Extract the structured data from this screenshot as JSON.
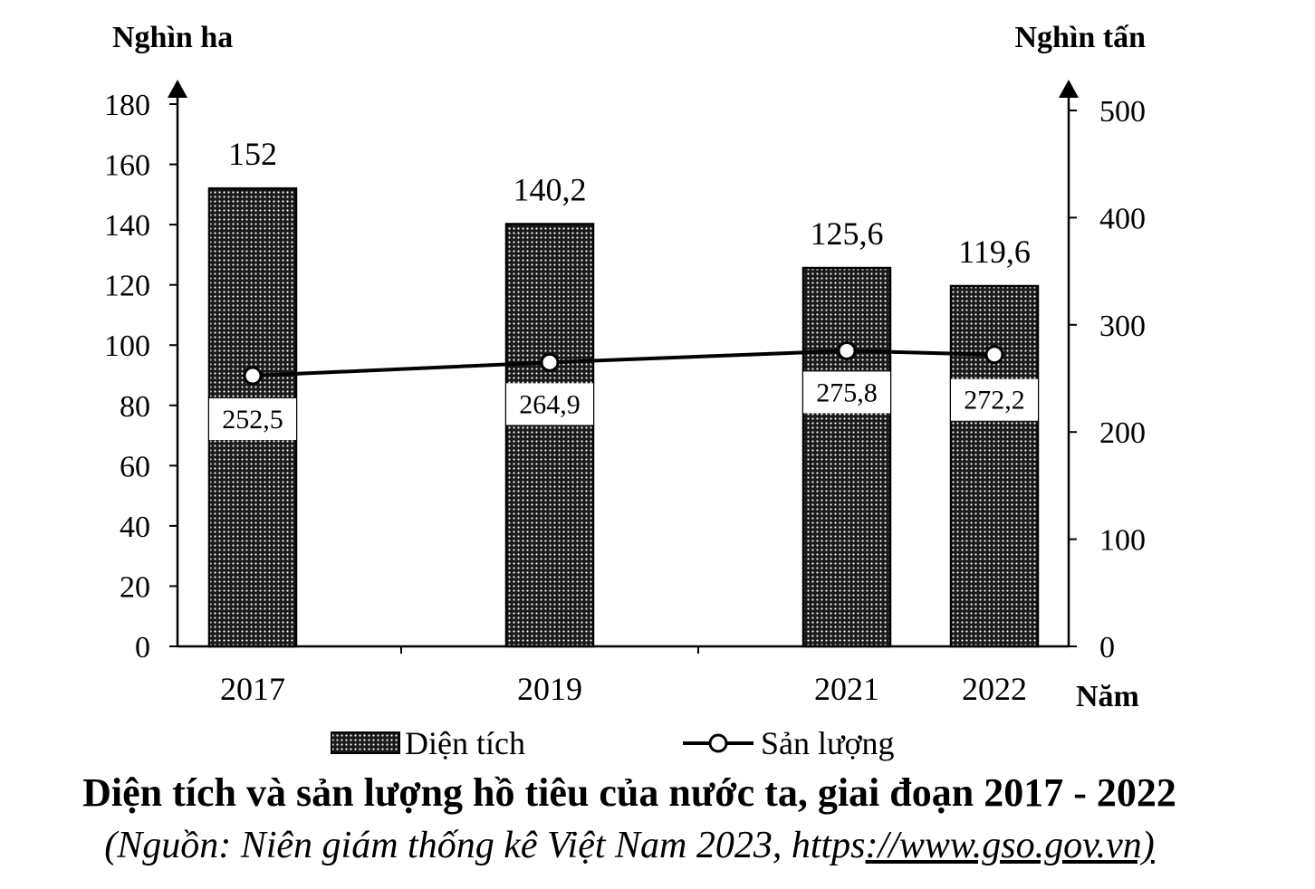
{
  "chart_data": {
    "type": "bar+line",
    "categories": [
      "2017",
      "2019",
      "2021",
      "2022"
    ],
    "series": [
      {
        "name": "Diện tích",
        "type": "bar",
        "axis": "left",
        "values": [
          152,
          140.2,
          125.6,
          119.6
        ],
        "labels": [
          "152",
          "140,2",
          "125,6",
          "119,6"
        ]
      },
      {
        "name": "Sản lượng",
        "type": "line",
        "axis": "right",
        "values": [
          252.5,
          264.9,
          275.8,
          272.2
        ],
        "labels": [
          "252,5",
          "264,9",
          "275,8",
          "272,2"
        ]
      }
    ],
    "y_left": {
      "unit": "Nghìn ha",
      "min": 0,
      "max": 180,
      "ticks": [
        "0",
        "20",
        "40",
        "60",
        "80",
        "100",
        "120",
        "140",
        "160",
        "180"
      ]
    },
    "y_right": {
      "unit": "Nghìn tấn",
      "min": 0,
      "max": 500,
      "ticks": [
        "0",
        "100",
        "200",
        "300",
        "400",
        "500"
      ]
    },
    "x_axis_label": "Năm",
    "legend": {
      "position": "bottom"
    },
    "grid": false,
    "colors": {
      "bar_fill": "#1a1a1a",
      "bar_dots": "#ffffff",
      "line": "#000000",
      "marker_fill": "#ffffff"
    }
  },
  "caption": {
    "title": "Diện tích và sản lượng hồ tiêu của nước ta, giai đoạn 2017 - 2022",
    "source_prefix": "(Nguồn: Niên giám thống kê Việt Nam 2023, https",
    "source_url": "://www.gso.gov.vn)"
  }
}
